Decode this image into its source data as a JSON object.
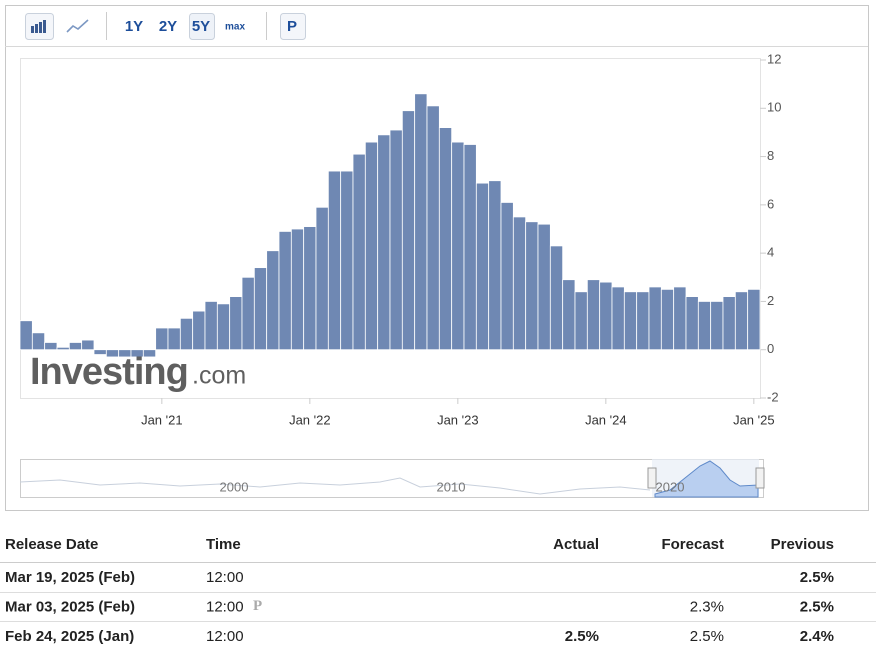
{
  "toolbar": {
    "buttons": [
      "1Y",
      "2Y",
      "5Y",
      "max",
      "P"
    ]
  },
  "chart_data": {
    "type": "bar",
    "categories": [
      null,
      null,
      null,
      null,
      null,
      null,
      null,
      null,
      null,
      null,
      null,
      "Jan '21",
      null,
      null,
      null,
      null,
      null,
      null,
      null,
      null,
      null,
      null,
      null,
      "Jan '22",
      null,
      null,
      null,
      null,
      null,
      null,
      null,
      null,
      null,
      null,
      null,
      "Jan '23",
      null,
      null,
      null,
      null,
      null,
      null,
      null,
      null,
      null,
      null,
      null,
      "Jan '24",
      null,
      null,
      null,
      null,
      null,
      null,
      null,
      null,
      null,
      null,
      null,
      "Jan '25"
    ],
    "values": [
      1.2,
      0.7,
      0.3,
      0.1,
      0.3,
      0.4,
      -0.2,
      -0.3,
      -0.3,
      -0.3,
      -0.3,
      0.9,
      0.9,
      1.3,
      1.6,
      2.0,
      1.9,
      2.2,
      3.0,
      3.4,
      4.1,
      4.9,
      5.0,
      5.1,
      5.9,
      7.4,
      7.4,
      8.1,
      8.6,
      8.9,
      9.1,
      9.9,
      10.6,
      10.1,
      9.2,
      8.6,
      8.5,
      6.9,
      7.0,
      6.1,
      5.5,
      5.3,
      5.2,
      4.3,
      2.9,
      2.4,
      2.9,
      2.8,
      2.6,
      2.4,
      2.4,
      2.6,
      2.5,
      2.6,
      2.2,
      2.0,
      2.0,
      2.2,
      2.4,
      2.5
    ],
    "color": "#6f88b3",
    "ylim": [
      -2,
      12
    ],
    "yticks": [
      -2,
      0,
      2,
      4,
      6,
      8,
      10,
      12
    ],
    "grid": false,
    "watermark": [
      "Investing",
      ".com"
    ],
    "navigator_labels": [
      "2000",
      "2010",
      "2020"
    ]
  },
  "table": {
    "header": [
      "Release Date",
      "Time",
      "Actual",
      "Forecast",
      "Previous"
    ],
    "rows": [
      {
        "release_date": "Mar 19, 2025 (Feb)",
        "time": "12:00",
        "previous": "2.5%"
      },
      {
        "release_date": "Mar 03, 2025 (Feb)",
        "time": "12:00",
        "badge": "P",
        "forecast": "2.3%",
        "previous": "2.5%"
      },
      {
        "release_date": "Feb 24, 2025 (Jan)",
        "time": "12:00",
        "actual": "2.5%",
        "forecast": "2.5%",
        "previous": "2.4%"
      }
    ]
  }
}
